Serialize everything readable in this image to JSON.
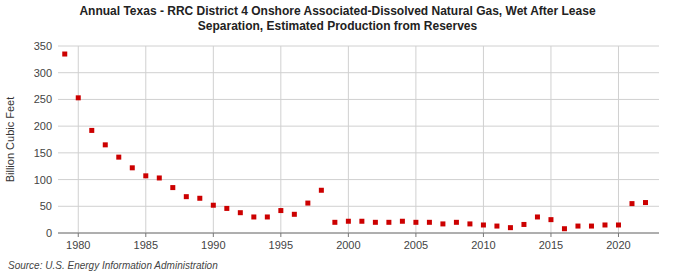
{
  "chart_data": {
    "type": "scatter",
    "title": "Annual Texas - RRC District 4 Onshore Associated-Dissolved Natural Gas, Wet After Lease\nSeparation, Estimated Production from Reserves",
    "y_label": "Billion Cubic Feet",
    "source": "Source: U.S. Energy Information Administration",
    "x": [
      1979,
      1980,
      1981,
      1982,
      1983,
      1984,
      1985,
      1986,
      1987,
      1988,
      1989,
      1990,
      1991,
      1992,
      1993,
      1994,
      1995,
      1996,
      1997,
      1998,
      1999,
      2000,
      2001,
      2002,
      2003,
      2004,
      2005,
      2006,
      2007,
      2008,
      2009,
      2010,
      2011,
      2012,
      2013,
      2014,
      2015,
      2016,
      2017,
      2018,
      2019,
      2020,
      2021,
      2022
    ],
    "values": [
      335,
      253,
      192,
      165,
      142,
      122,
      107,
      103,
      85,
      68,
      65,
      52,
      46,
      38,
      30,
      30,
      42,
      35,
      56,
      80,
      20,
      22,
      22,
      20,
      20,
      22,
      20,
      20,
      17,
      20,
      17,
      15,
      13,
      10,
      16,
      30,
      25,
      8,
      13,
      13,
      15,
      15,
      55,
      57
    ],
    "color": "#cc0000",
    "marker": "square",
    "xlim": [
      1978.5,
      2023
    ],
    "ylim": [
      0,
      350
    ],
    "xticks": [
      1980,
      1985,
      1990,
      1995,
      2000,
      2005,
      2010,
      2015,
      2020
    ],
    "yticks": [
      0,
      50,
      100,
      150,
      200,
      250,
      300,
      350
    ],
    "grid": true
  }
}
